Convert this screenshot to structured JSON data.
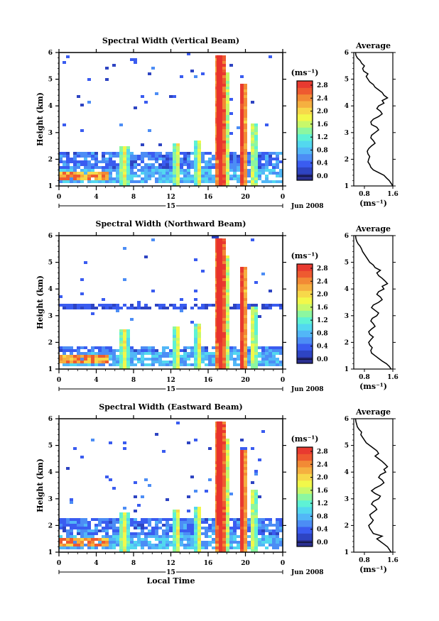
{
  "colorscale": {
    "colors": [
      "#2a2f8f",
      "#2e44c2",
      "#3a5cf0",
      "#4c8df5",
      "#52b7f7",
      "#53d8ef",
      "#5ef2d5",
      "#8cf7a0",
      "#c8f86a",
      "#f2f84a",
      "#f7d84a",
      "#f5b040",
      "#f28a35",
      "#ee5a30",
      "#e83a30"
    ],
    "highlight": "#e8322c",
    "low": "#3648c4"
  },
  "chart_data": [
    {
      "type": "heatmap",
      "title": "Spectral Width (Vertical Beam)",
      "ylabel": "Height (km)",
      "yticks": [
        "1",
        "2",
        "3",
        "4",
        "5",
        "6"
      ],
      "ylim": [
        1,
        6
      ],
      "xticks": [
        "0",
        "4",
        "8",
        "12",
        "16",
        "20",
        "0"
      ],
      "xlim": [
        0,
        24
      ],
      "day_label": "15",
      "date_label": "Jun 2008",
      "colorbar": {
        "title": "(ms⁻¹)",
        "ticks": [
          "0.0",
          "0.4",
          "0.8",
          "1.2",
          "1.6",
          "2.0",
          "2.4",
          "2.8"
        ],
        "range": [
          0,
          3
        ]
      },
      "profile": {
        "title": "Average",
        "xlabel": "(ms⁻¹)",
        "xticks": [
          "0.8",
          "1.6"
        ],
        "xlim": [
          0.5,
          1.6
        ],
        "yticks": [
          "1",
          "2",
          "3",
          "4",
          "5",
          "6"
        ],
        "heights": [
          1.0,
          1.1,
          1.2,
          1.3,
          1.4,
          1.5,
          1.6,
          1.7,
          1.8,
          1.9,
          2.0,
          2.1,
          2.2,
          2.3,
          2.4,
          2.5,
          2.6,
          2.7,
          2.8,
          2.9,
          3.0,
          3.1,
          3.2,
          3.3,
          3.4,
          3.5,
          3.6,
          3.7,
          3.8,
          3.9,
          4.0,
          4.1,
          4.2,
          4.3,
          4.4,
          4.5,
          4.6,
          4.7,
          4.8,
          4.9,
          5.0,
          5.1,
          5.2,
          5.3,
          5.4,
          5.5,
          5.6,
          5.7,
          5.8,
          5.9,
          6.0
        ],
        "values": [
          1.6,
          1.55,
          1.5,
          1.42,
          1.35,
          1.2,
          1.05,
          0.98,
          0.95,
          0.9,
          0.92,
          0.95,
          0.9,
          0.88,
          0.92,
          1.0,
          1.1,
          1.05,
          0.98,
          1.0,
          1.1,
          1.2,
          1.15,
          1.0,
          0.98,
          1.05,
          1.2,
          1.3,
          1.25,
          1.15,
          1.2,
          1.35,
          1.3,
          1.45,
          1.35,
          1.3,
          1.2,
          1.1,
          1.05,
          0.95,
          0.9,
          0.85,
          0.9,
          0.78,
          0.75,
          0.8,
          0.72,
          0.68,
          0.6,
          0.56,
          0.55
        ]
      }
    },
    {
      "type": "heatmap",
      "title": "Spectral Width (Northward Beam)",
      "ylabel": "Height (km)",
      "yticks": [
        "1",
        "2",
        "3",
        "4",
        "5",
        "6"
      ],
      "ylim": [
        1,
        6
      ],
      "xticks": [
        "0",
        "4",
        "8",
        "12",
        "16",
        "20",
        "0"
      ],
      "xlim": [
        0,
        24
      ],
      "day_label": "15",
      "date_label": "Jun 2008",
      "colorbar": {
        "title": "(ms⁻¹)",
        "ticks": [
          "0.0",
          "0.4",
          "0.8",
          "1.2",
          "1.6",
          "2.0",
          "2.4",
          "2.8"
        ],
        "range": [
          0,
          3
        ]
      },
      "profile": {
        "title": "Average",
        "xlabel": "(ms⁻¹)",
        "xticks": [
          "0.8",
          "1.6"
        ],
        "xlim": [
          0.5,
          1.6
        ],
        "yticks": [
          "1",
          "2",
          "3",
          "4",
          "5",
          "6"
        ],
        "heights": [
          1.0,
          1.1,
          1.2,
          1.3,
          1.4,
          1.5,
          1.6,
          1.7,
          1.8,
          1.9,
          2.0,
          2.1,
          2.2,
          2.3,
          2.4,
          2.5,
          2.6,
          2.7,
          2.8,
          2.9,
          3.0,
          3.1,
          3.2,
          3.3,
          3.4,
          3.5,
          3.6,
          3.7,
          3.8,
          3.9,
          4.0,
          4.1,
          4.2,
          4.3,
          4.4,
          4.5,
          4.6,
          4.7,
          4.8,
          4.9,
          5.0,
          5.1,
          5.2,
          5.3,
          5.4,
          5.5,
          5.6,
          5.7,
          5.8,
          5.9,
          6.0
        ],
        "values": [
          1.55,
          1.5,
          1.42,
          1.3,
          1.2,
          1.1,
          1.0,
          0.98,
          1.02,
          0.95,
          0.92,
          0.98,
          1.05,
          0.95,
          0.92,
          1.0,
          1.1,
          1.05,
          0.98,
          1.02,
          1.15,
          1.2,
          1.1,
          1.0,
          1.05,
          1.2,
          1.3,
          1.25,
          1.15,
          1.2,
          1.35,
          1.3,
          1.45,
          1.38,
          1.3,
          1.2,
          1.15,
          1.25,
          1.1,
          1.05,
          0.95,
          0.9,
          0.85,
          0.8,
          0.75,
          0.72,
          0.68,
          0.62,
          0.58,
          0.56,
          0.55
        ]
      }
    },
    {
      "type": "heatmap",
      "title": "Spectral Width (Eastward Beam)",
      "ylabel": "Height (km)",
      "yticks": [
        "1",
        "2",
        "3",
        "4",
        "5",
        "6"
      ],
      "ylim": [
        1,
        6
      ],
      "xticks": [
        "0",
        "4",
        "8",
        "12",
        "16",
        "20",
        "0"
      ],
      "xlim": [
        0,
        24
      ],
      "day_label": "15",
      "date_label": "Jun 2008",
      "xlabel": "Local Time",
      "colorbar": {
        "title": "(ms⁻¹)",
        "ticks": [
          "0.0",
          "0.4",
          "0.8",
          "1.2",
          "1.6",
          "2.0",
          "2.4",
          "2.8"
        ],
        "range": [
          0,
          3
        ]
      },
      "profile": {
        "title": "Average",
        "xlabel": "(ms⁻¹)",
        "xticks": [
          "0.8",
          "1.6"
        ],
        "xlim": [
          0.5,
          1.6
        ],
        "yticks": [
          "1",
          "2",
          "3",
          "4",
          "5",
          "6"
        ],
        "heights": [
          1.0,
          1.1,
          1.2,
          1.3,
          1.4,
          1.5,
          1.6,
          1.7,
          1.8,
          1.9,
          2.0,
          2.1,
          2.2,
          2.3,
          2.4,
          2.5,
          2.6,
          2.7,
          2.8,
          2.9,
          3.0,
          3.1,
          3.2,
          3.3,
          3.4,
          3.5,
          3.6,
          3.7,
          3.8,
          3.9,
          4.0,
          4.1,
          4.2,
          4.3,
          4.4,
          4.5,
          4.6,
          4.7,
          4.8,
          4.9,
          5.0,
          5.1,
          5.2,
          5.3,
          5.4,
          5.5,
          5.6,
          5.7,
          5.8,
          5.9,
          6.0
        ],
        "values": [
          1.55,
          1.5,
          1.45,
          1.35,
          1.25,
          1.15,
          1.3,
          1.05,
          1.0,
          0.95,
          0.92,
          1.0,
          1.05,
          0.98,
          0.95,
          1.05,
          1.15,
          1.1,
          1.0,
          1.05,
          1.2,
          1.25,
          1.1,
          1.0,
          1.1,
          1.25,
          1.35,
          1.3,
          1.2,
          1.25,
          1.4,
          1.35,
          1.45,
          1.38,
          1.3,
          1.2,
          1.1,
          1.2,
          1.15,
          1.05,
          0.95,
          0.85,
          0.8,
          0.75,
          0.7,
          0.72,
          0.65,
          0.6,
          0.58,
          0.56,
          0.55
        ]
      }
    }
  ]
}
